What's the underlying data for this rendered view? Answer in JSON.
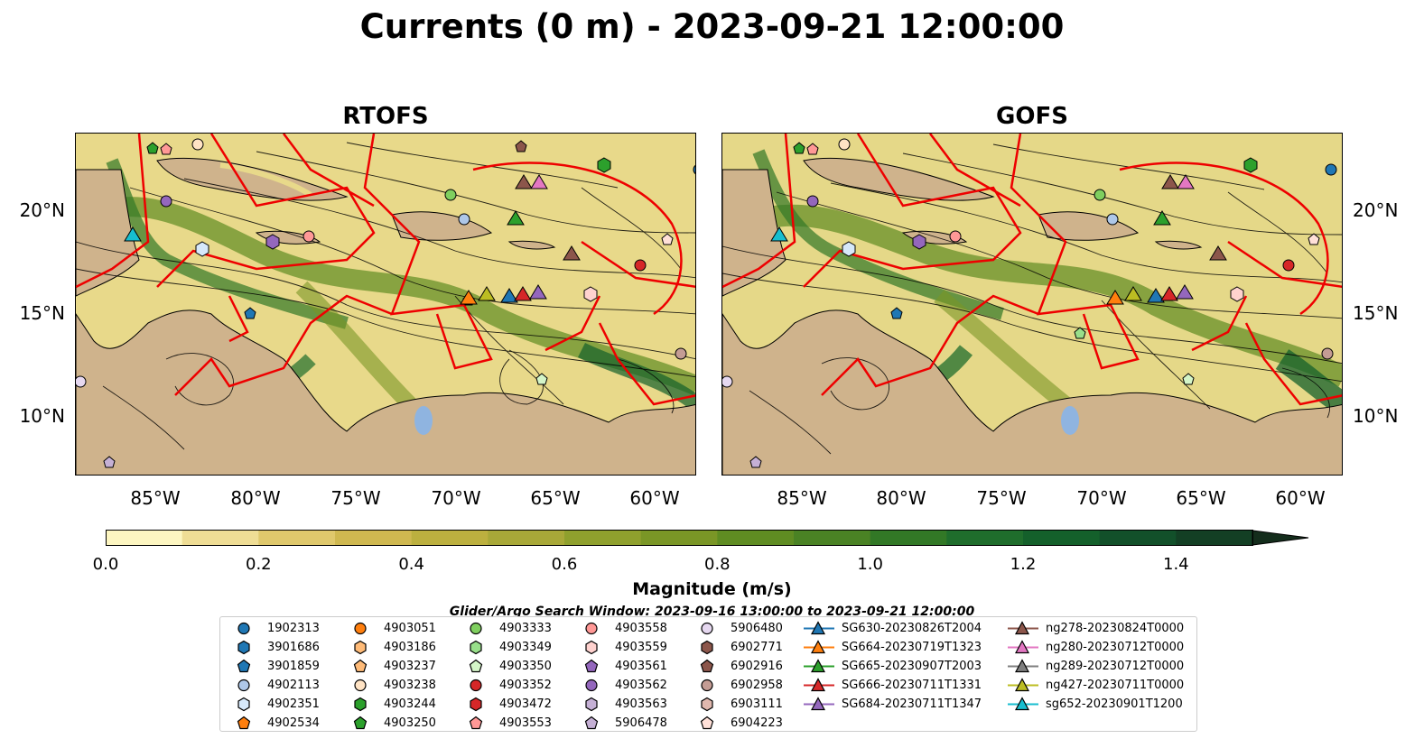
{
  "title": "Currents (0 m) - 2023-09-21 12:00:00",
  "panels": [
    {
      "title": "RTOFS"
    },
    {
      "title": "GOFS"
    }
  ],
  "lon_ticks": [
    "85°W",
    "80°W",
    "75°W",
    "70°W",
    "65°W",
    "60°W"
  ],
  "lat_ticks": [
    "20°N",
    "15°N",
    "10°N"
  ],
  "colorbar": {
    "label": "Magnitude (m/s)",
    "range": [
      0.0,
      1.5
    ],
    "ticks": [
      "0.0",
      "0.2",
      "0.4",
      "0.6",
      "0.8",
      "1.0",
      "1.2",
      "1.4"
    ],
    "colors": [
      "#fdf6c1",
      "#efdd95",
      "#dfc86c",
      "#cfb850",
      "#bcb03f",
      "#a8a838",
      "#8fa02d",
      "#7a9626",
      "#5f8c22",
      "#4a8224",
      "#327826",
      "#1f6d2c",
      "#14602b",
      "#12502a",
      "#133f24",
      "#142d1c"
    ]
  },
  "search_window": "Glider/Argo Search Window: 2023-09-16 13:00:00 to 2023-09-21 12:00:00",
  "legend": {
    "columns": [
      [
        {
          "label": "1902313",
          "shape": "circle",
          "color": "#1f77b4"
        },
        {
          "label": "3901686",
          "shape": "hexagon",
          "color": "#1f77b4"
        },
        {
          "label": "3901859",
          "shape": "pentagon",
          "color": "#1f77b4"
        },
        {
          "label": "4902113",
          "shape": "circle",
          "color": "#aec7e8"
        },
        {
          "label": "4902351",
          "shape": "hexagon",
          "color": "#d6e8fa"
        },
        {
          "label": "4902534",
          "shape": "pentagon",
          "color": "#ff7f0e"
        }
      ],
      [
        {
          "label": "4903051",
          "shape": "circle",
          "color": "#ff7f0e"
        },
        {
          "label": "4903186",
          "shape": "hexagon",
          "color": "#ffbb78"
        },
        {
          "label": "4903237",
          "shape": "pentagon",
          "color": "#ffbb78"
        },
        {
          "label": "4903238",
          "shape": "circle",
          "color": "#ffe3c4"
        },
        {
          "label": "4903244",
          "shape": "hexagon",
          "color": "#2ca02c"
        },
        {
          "label": "4903250",
          "shape": "pentagon",
          "color": "#2ca02c"
        }
      ],
      [
        {
          "label": "4903333",
          "shape": "circle",
          "color": "#7fcf5f"
        },
        {
          "label": "4903349",
          "shape": "hexagon",
          "color": "#98df8a"
        },
        {
          "label": "4903350",
          "shape": "pentagon",
          "color": "#d4f5c8"
        },
        {
          "label": "4903352",
          "shape": "circle",
          "color": "#d62728"
        },
        {
          "label": "4903472",
          "shape": "hexagon",
          "color": "#d62728"
        },
        {
          "label": "4903553",
          "shape": "pentagon",
          "color": "#ff9896"
        }
      ],
      [
        {
          "label": "4903558",
          "shape": "circle",
          "color": "#ff9896"
        },
        {
          "label": "4903559",
          "shape": "hexagon",
          "color": "#ffd2cf"
        },
        {
          "label": "4903561",
          "shape": "pentagon",
          "color": "#9467bd"
        },
        {
          "label": "4903562",
          "shape": "circle",
          "color": "#9467bd"
        },
        {
          "label": "4903563",
          "shape": "hexagon",
          "color": "#c5b0d5"
        },
        {
          "label": "5906478",
          "shape": "pentagon",
          "color": "#c5b0d5"
        }
      ],
      [
        {
          "label": "5906480",
          "shape": "circle",
          "color": "#e6d8f0"
        },
        {
          "label": "6902771",
          "shape": "hexagon",
          "color": "#8c564b"
        },
        {
          "label": "6902916",
          "shape": "pentagon",
          "color": "#8c564b"
        },
        {
          "label": "6902958",
          "shape": "circle",
          "color": "#c49c94"
        },
        {
          "label": "6903111",
          "shape": "hexagon",
          "color": "#e0b8ae"
        },
        {
          "label": "6904223",
          "shape": "pentagon",
          "color": "#ffe0d8"
        }
      ],
      [
        {
          "label": "SG630-20230826T2004",
          "shape": "triangle-line",
          "color": "#1f77b4"
        },
        {
          "label": "SG664-20230719T1323",
          "shape": "triangle-line",
          "color": "#ff7f0e"
        },
        {
          "label": "SG665-20230907T2003",
          "shape": "triangle-line",
          "color": "#2ca02c"
        },
        {
          "label": "SG666-20230711T1331",
          "shape": "triangle-line",
          "color": "#d62728"
        },
        {
          "label": "SG684-20230711T1347",
          "shape": "triangle-line",
          "color": "#9467bd"
        }
      ],
      [
        {
          "label": "ng278-20230824T0000",
          "shape": "triangle-line",
          "color": "#8c564b"
        },
        {
          "label": "ng280-20230712T0000",
          "shape": "triangle-line",
          "color": "#e377c2"
        },
        {
          "label": "ng289-20230712T0000",
          "shape": "triangle-line",
          "color": "#7f7f7f"
        },
        {
          "label": "ng427-20230711T0000",
          "shape": "triangle-line",
          "color": "#bcbd22"
        },
        {
          "label": "sg652-20230901T1200",
          "shape": "triangle-line",
          "color": "#17becf"
        }
      ]
    ]
  }
}
